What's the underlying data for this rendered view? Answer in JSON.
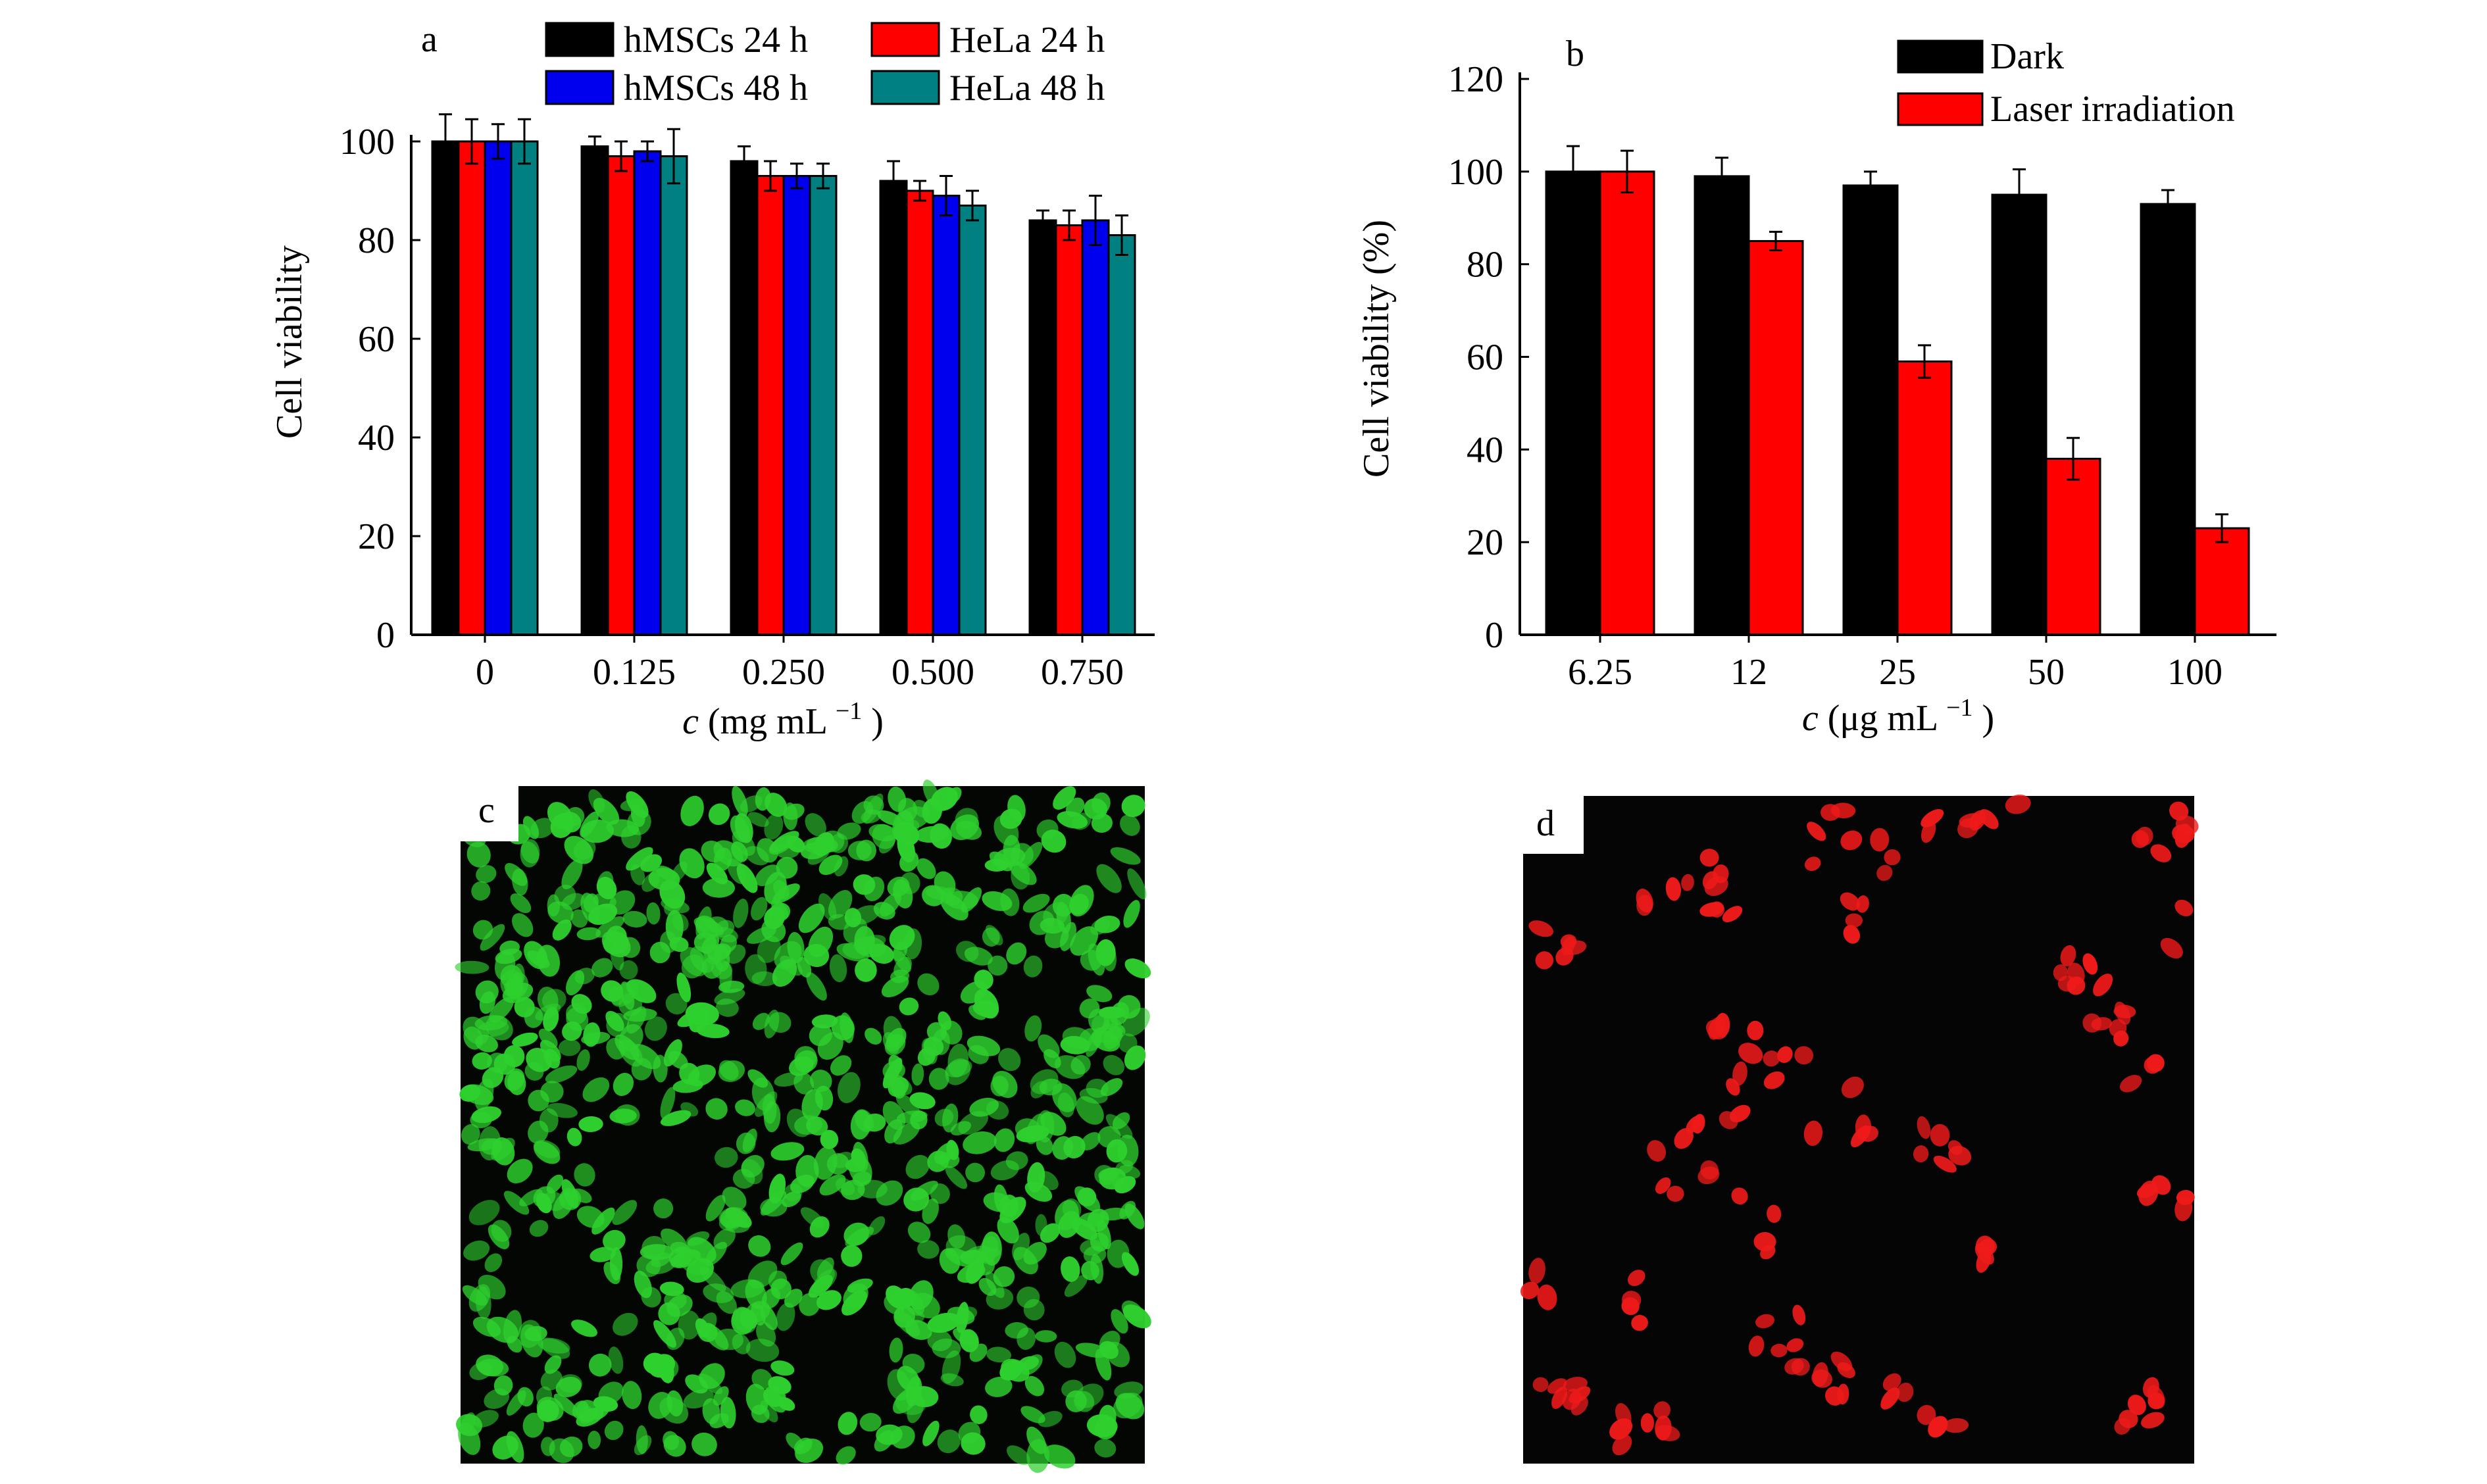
{
  "colors": {
    "black": "#000000",
    "red": "#ff0000",
    "blue": "#0000ee",
    "teal": "#008080",
    "micro_bg": "#050505",
    "green_cell": "#2ed02e",
    "red_cell": "#ee1a1a"
  },
  "chart_data": [
    {
      "panel": "a",
      "type": "bar",
      "categories": [
        "0",
        "0.125",
        "0.250",
        "0.500",
        "0.750"
      ],
      "xlabel_prefix": "c",
      "xlabel_units": "(mg mL",
      "xlabel_sup": "−1",
      "xlabel_close": ")",
      "ylabel": "Cell viability",
      "ylim": [
        0,
        100
      ],
      "yticks": [
        "0",
        "20",
        "40",
        "60",
        "80",
        "100"
      ],
      "legend": "top",
      "series": [
        {
          "name": "hMSCs 24 h",
          "color": "#000000",
          "values": [
            100,
            99,
            96,
            92,
            84
          ],
          "errors": [
            5.5,
            2,
            3,
            4,
            2
          ]
        },
        {
          "name": "HeLa 24 h",
          "color": "#ff0000",
          "values": [
            100,
            97,
            93,
            90,
            83
          ],
          "errors": [
            4.5,
            3,
            3,
            2,
            3
          ]
        },
        {
          "name": "hMSCs 48 h",
          "color": "#0000ee",
          "values": [
            100,
            98,
            93,
            89,
            84
          ],
          "errors": [
            3.5,
            2,
            2.5,
            4,
            5
          ]
        },
        {
          "name": "HeLa 48 h",
          "color": "#008080",
          "values": [
            100,
            97,
            93,
            87,
            81
          ],
          "errors": [
            4.5,
            5.5,
            2.5,
            3,
            4
          ]
        }
      ]
    },
    {
      "panel": "b",
      "type": "bar",
      "categories": [
        "6.25",
        "12",
        "25",
        "50",
        "100"
      ],
      "xlabel_prefix": "c",
      "xlabel_units": "(μg mL",
      "xlabel_sup": "−1",
      "xlabel_close": ")",
      "ylabel": "Cell viability (%)",
      "ylim": [
        0,
        120
      ],
      "yticks": [
        "0",
        "20",
        "40",
        "60",
        "80",
        "100",
        "120"
      ],
      "legend": "top-right",
      "series": [
        {
          "name": "Dark",
          "color": "#000000",
          "values": [
            100,
            99,
            97,
            95,
            93
          ],
          "errors": [
            5.5,
            4,
            3,
            5.5,
            3
          ]
        },
        {
          "name": "Laser irradiation",
          "color": "#ff0000",
          "values": [
            100,
            85,
            59,
            38,
            23
          ],
          "errors": [
            4.5,
            2,
            3.5,
            4.5,
            3
          ]
        }
      ]
    }
  ],
  "panels": {
    "a": "a",
    "b": "b",
    "c": "c",
    "d": "d"
  }
}
